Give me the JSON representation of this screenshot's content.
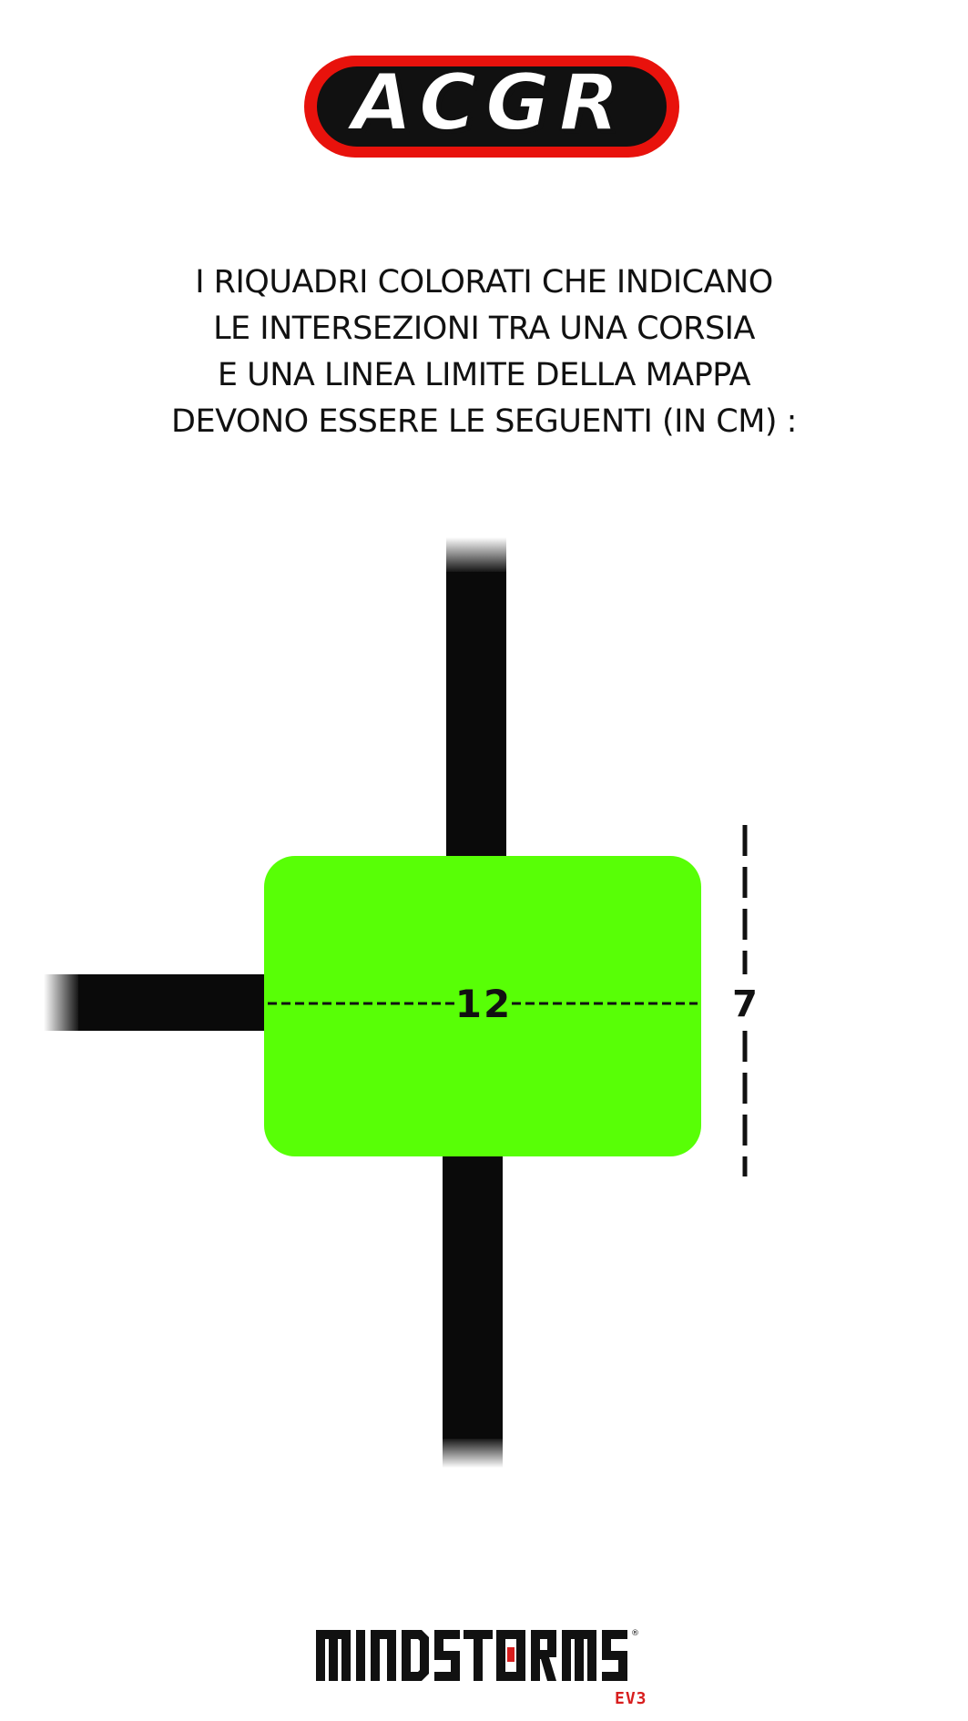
{
  "logo_top": {
    "text": "ACGR",
    "colors": {
      "outer": "#e8120c",
      "mid": "#111111",
      "fill": "#ffffff"
    }
  },
  "instructions": {
    "lines": [
      "I RIQUADRI COLORATI CHE INDICANO",
      "LE INTERSEZIONI TRA UNA CORSIA",
      "E UNA LINEA LIMITE DELLA MAPPA",
      "DEVONO ESSERE LE SEGUENTI (IN CM) :"
    ]
  },
  "diagram": {
    "width_label": "12",
    "height_label": "7",
    "colors": {
      "box": "#58ff06",
      "track": "#0a0a0a",
      "dimension": "#111111"
    }
  },
  "logo_bottom": {
    "text": "MINDSTORMS",
    "sub": "EV3",
    "colors": {
      "text": "#111111",
      "accent": "#d81e1e"
    }
  }
}
